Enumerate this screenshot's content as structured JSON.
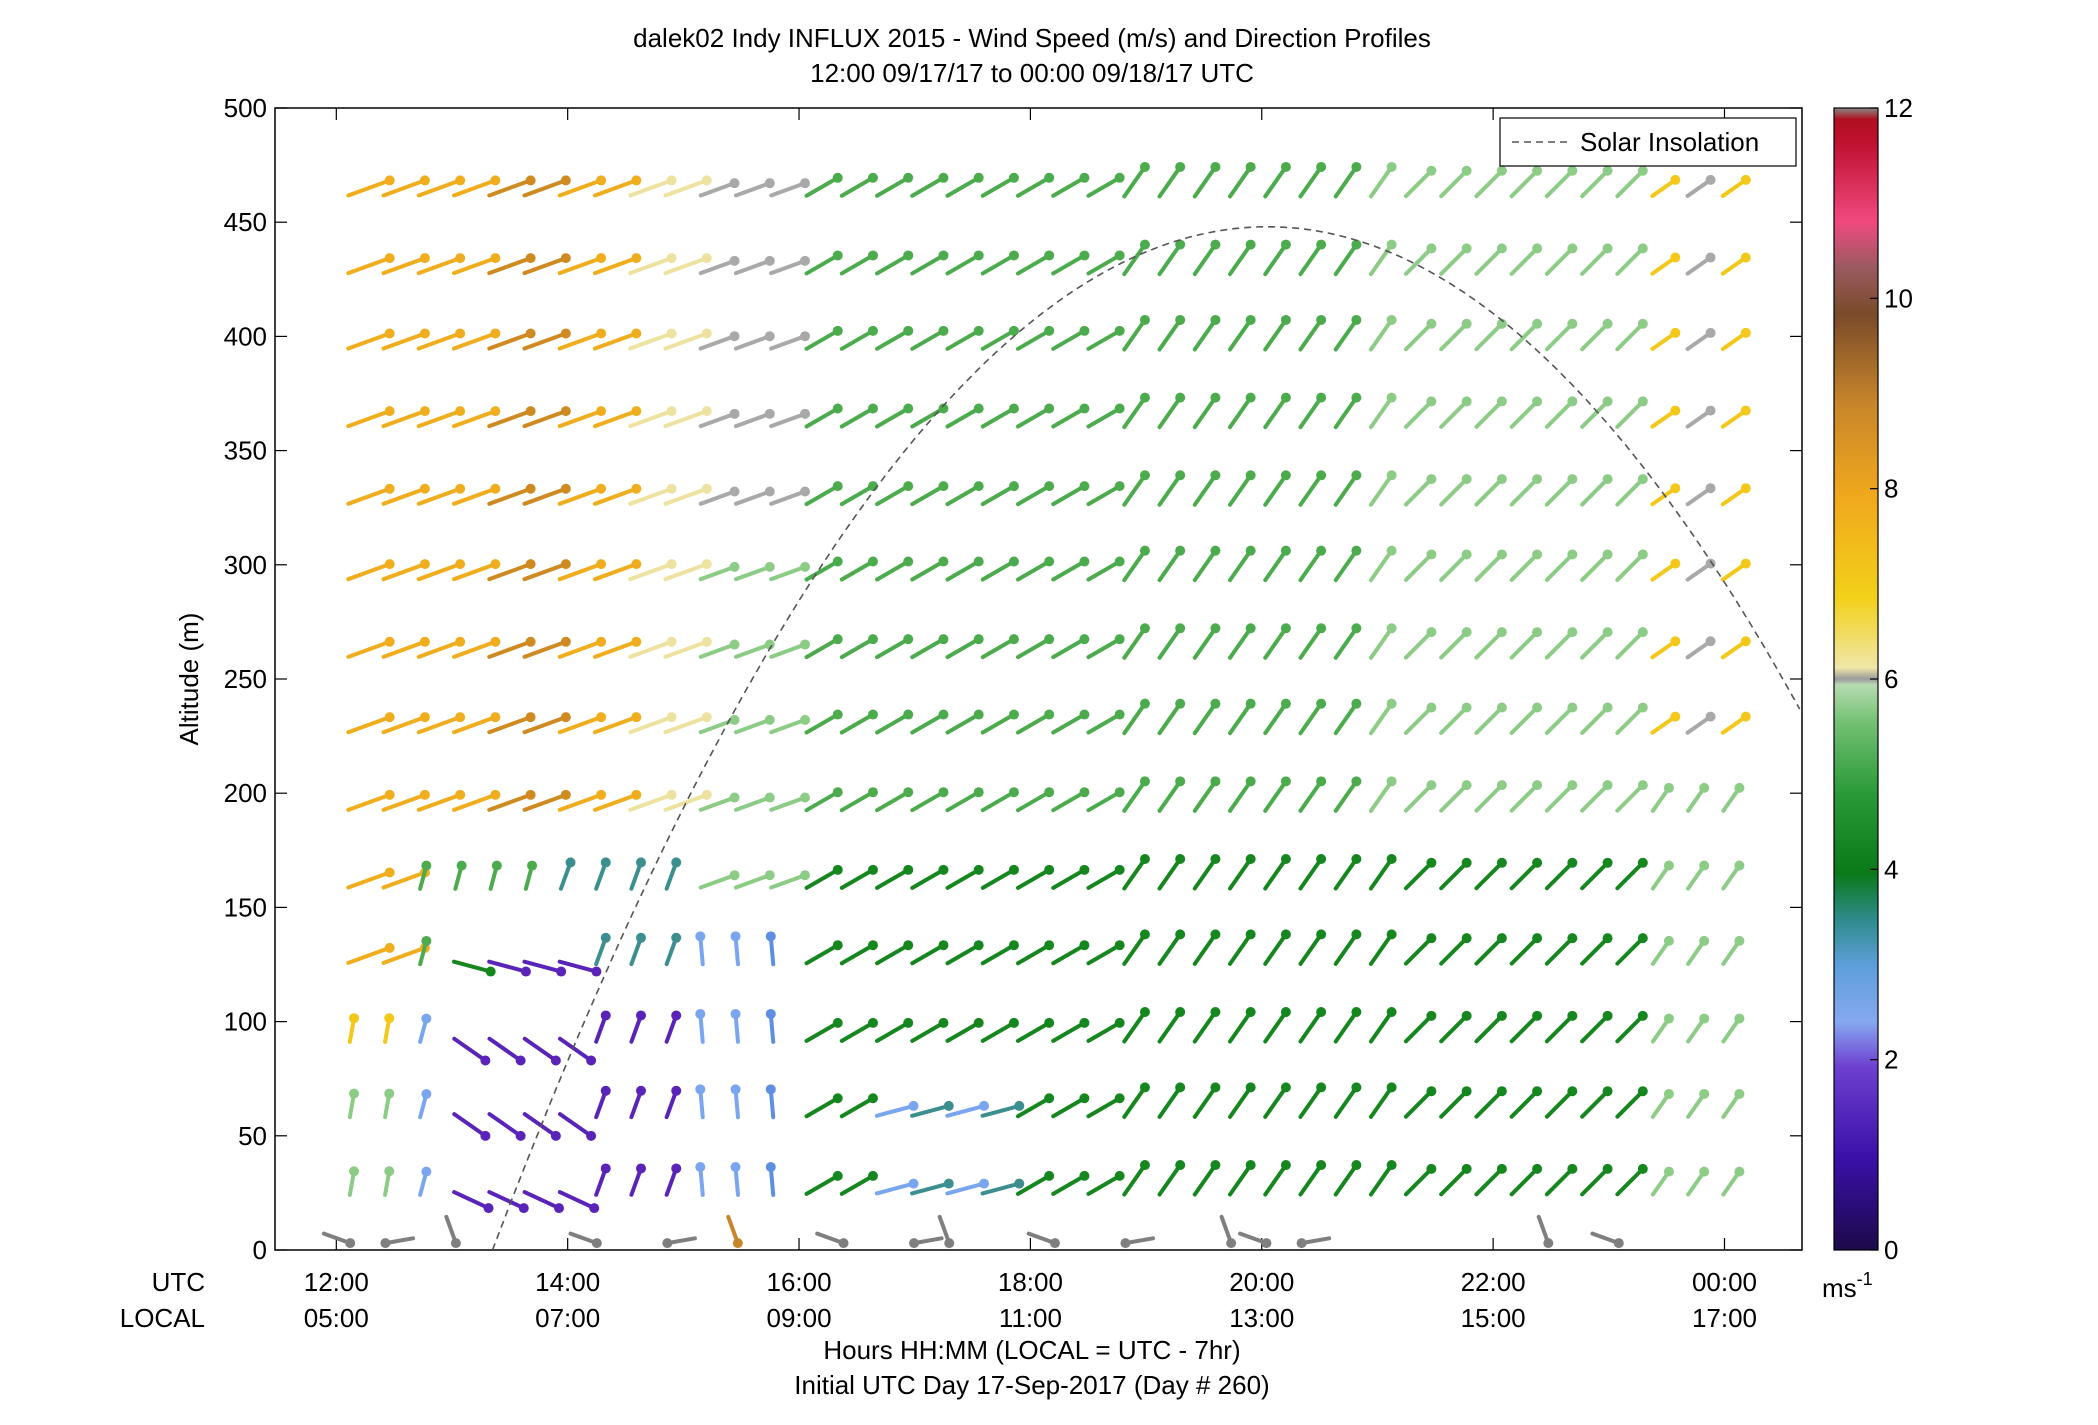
{
  "chart_data": {
    "type": "wind_profile",
    "title_line1": "dalek02 Indy INFLUX 2015 - Wind Speed (m/s) and Direction Profiles",
    "title_line2": "12:00 09/17/17 to 00:00 09/18/17  UTC",
    "ylabel": "Altitude (m)",
    "xlabel_line1": "Hours HH:MM  (LOCAL = UTC - 7hr)",
    "xlabel_line2": "Initial UTC Day 17-Sep-2017 (Day # 260)",
    "utc_row_label": "UTC",
    "local_row_label": "LOCAL",
    "x_ticks_utc": [
      "12:00",
      "14:00",
      "16:00",
      "18:00",
      "20:00",
      "22:00",
      "00:00"
    ],
    "x_ticks_local": [
      "05:00",
      "07:00",
      "09:00",
      "11:00",
      "13:00",
      "15:00",
      "17:00"
    ],
    "x_tick_hours": [
      12,
      14,
      16,
      18,
      20,
      22,
      24
    ],
    "xlim_hours": [
      11.47,
      24.67
    ],
    "ylim": [
      0,
      500
    ],
    "y_ticks": [
      0,
      50,
      100,
      150,
      200,
      250,
      300,
      350,
      400,
      450,
      500
    ],
    "legend": {
      "label": "Solar Insolation",
      "position": "top-right"
    },
    "colorbar": {
      "unit": "ms-1",
      "unit_base": "ms",
      "unit_exp": "-1",
      "ticks": [
        0,
        2,
        4,
        6,
        8,
        10,
        12
      ],
      "range": [
        0,
        12
      ]
    },
    "solar_insolation": {
      "peak_hour": 20.05,
      "peak_altitude": 448,
      "half_width_hours": 6.7
    }
  },
  "colors": {
    "legend_line": "#666666",
    "calm": "#808080"
  }
}
